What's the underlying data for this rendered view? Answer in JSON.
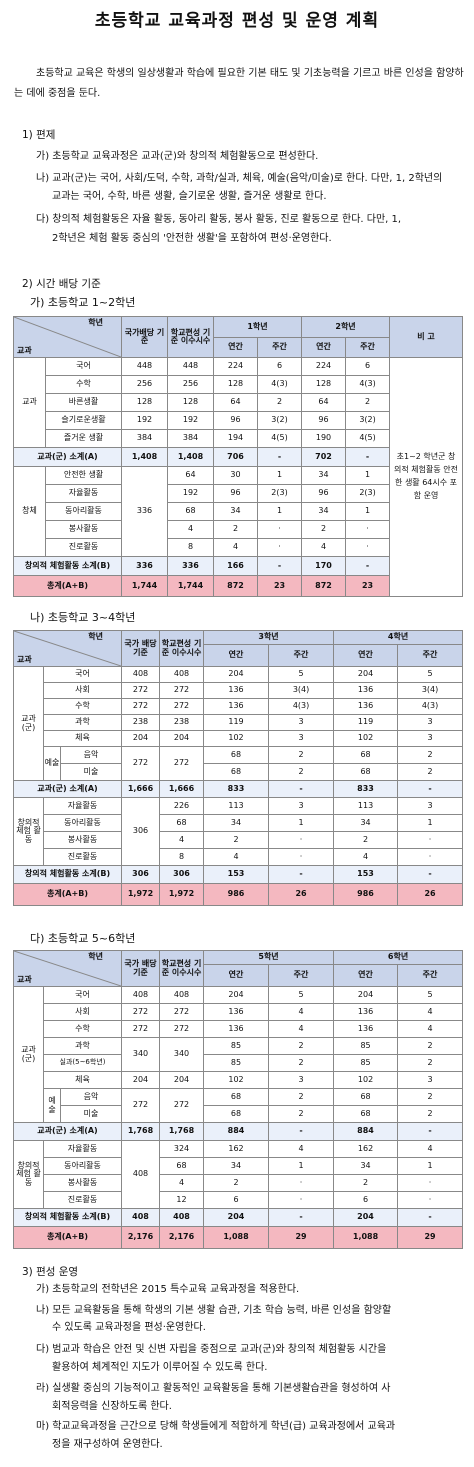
{
  "title": "초등학교 교육과정 편성 및 운영 계획",
  "intro": "초등학교 교육은 학생의 일상생활과 학습에 필요한 기본 태도 및 기초능력을 기르고 바른 인성을 함양하는 데에 중점을 둔다.",
  "s1": {
    "heading": "1) 편제",
    "ga": "가) 초등학교 교육과정은 교과(군)와 창의적 체험활동으로 편성한다.",
    "na1": "나) 교과(군)는 국어, 사회/도덕, 수학, 과학/실과, 체육, 예술(음악/미술)로 한다. 다만, 1, 2학년의",
    "na2": "교과는 국어, 수학, 바른 생활, 슬기로운 생활, 즐거운 생활로 한다.",
    "da1": "다) 창의적 체험활동은 자율 활동, 동아리 활동, 봉사 활동, 진로 활동으로 한다. 다만, 1,",
    "da2": "2학년은 체험 활동 중심의 '안전한 생활'을 포함하여 편성·운영한다."
  },
  "s2": {
    "heading": "2) 시간 배당 기준",
    "t1_title": "가) 초등학교 1~2학년",
    "t2_title": "나) 초등학교 3~4학년",
    "t3_title": "다) 초등학교 5~6학년"
  },
  "t1": {
    "h": {
      "gyogwa": "교과",
      "hangnyeon": "학년",
      "baedang": "국가배당 기준",
      "isu": "학교편성 기준 이수시수",
      "g1": "1학년",
      "g2": "2학년",
      "yeon": "연간",
      "ju": "주간",
      "bigo": "비 고"
    },
    "grp_gyogwa": "교과",
    "grp_chang": "창체",
    "rows": [
      [
        "국어",
        "448",
        "448",
        "224",
        "6",
        "224",
        "6"
      ],
      [
        "수학",
        "256",
        "256",
        "128",
        "4(3)",
        "128",
        "4(3)"
      ],
      [
        "바른생활",
        "128",
        "128",
        "64",
        "2",
        "64",
        "2"
      ],
      [
        "슬기로운생활",
        "192",
        "192",
        "96",
        "3(2)",
        "96",
        "3(2)"
      ],
      [
        "즐거운 생활",
        "384",
        "384",
        "194",
        "4(5)",
        "190",
        "4(5)"
      ]
    ],
    "sub1": [
      "교과(군) 소계(A)",
      "1,408",
      "1,408",
      "706",
      "-",
      "702",
      "-"
    ],
    "chang_base": "336",
    "crows": [
      [
        "안전한 생활",
        "64",
        "30",
        "1",
        "34",
        "1"
      ],
      [
        "자율활동",
        "192",
        "96",
        "2(3)",
        "96",
        "2(3)"
      ],
      [
        "동아리활동",
        "68",
        "34",
        "1",
        "34",
        "1"
      ],
      [
        "봉사활동",
        "4",
        "2",
        "·",
        "2",
        "·"
      ],
      [
        "진로활동",
        "8",
        "4",
        "·",
        "4",
        "·"
      ]
    ],
    "sub2": [
      "창의적 체험활동 소계(B)",
      "336",
      "336",
      "166",
      "-",
      "170",
      "-"
    ],
    "total": [
      "총계(A+B)",
      "1,744",
      "1,744",
      "872",
      "23",
      "872",
      "23"
    ],
    "note": "초1~2 학년군 창의적 체험활동 안전한 생활 64시수 포함 운영"
  },
  "t2": {
    "h": {
      "gyogwa": "교과",
      "hangnyeon": "학년",
      "baedang": "국가 배당 기준",
      "isu": "학교편성 기준 이수시수",
      "g3": "3학년",
      "g4": "4학년",
      "yeon": "연간",
      "ju": "주간"
    },
    "grp": "교과 (군)",
    "rows": [
      [
        "국어",
        "408",
        "408",
        "204",
        "5",
        "204",
        "5"
      ],
      [
        "사회",
        "272",
        "272",
        "136",
        "3(4)",
        "136",
        "3(4)"
      ],
      [
        "수학",
        "272",
        "272",
        "136",
        "4(3)",
        "136",
        "4(3)"
      ],
      [
        "과학",
        "238",
        "238",
        "119",
        "3",
        "119",
        "3"
      ],
      [
        "체육",
        "204",
        "204",
        "102",
        "3",
        "102",
        "3"
      ]
    ],
    "art": "예술",
    "art_base": "272",
    "art_isu": "272",
    "arows": [
      [
        "음악",
        "68",
        "2",
        "68",
        "2"
      ],
      [
        "미술",
        "68",
        "2",
        "68",
        "2"
      ]
    ],
    "sub1": [
      "교과(군) 소계(A)",
      "1,666",
      "1,666",
      "833",
      "-",
      "833",
      "-"
    ],
    "cgrp": "창의적 체험 활동",
    "cbase": "306",
    "crows": [
      [
        "자율활동",
        "226",
        "113",
        "3",
        "113",
        "3"
      ],
      [
        "동아리활동",
        "68",
        "34",
        "1",
        "34",
        "1"
      ],
      [
        "봉사활동",
        "4",
        "2",
        "·",
        "2",
        "·"
      ],
      [
        "진로활동",
        "8",
        "4",
        "·",
        "4",
        "·"
      ]
    ],
    "sub2": [
      "창의적 체험활동 소계(B)",
      "306",
      "306",
      "153",
      "-",
      "153",
      "-"
    ],
    "total": [
      "총계(A+B)",
      "1,972",
      "1,972",
      "986",
      "26",
      "986",
      "26"
    ]
  },
  "t3": {
    "h": {
      "gyogwa": "교과",
      "hangnyeon": "학년",
      "baedang": "국가 배당 기준",
      "isu": "학교편성 기준 이수시수",
      "g5": "5학년",
      "g6": "6학년",
      "yeon": "연간",
      "ju": "주간"
    },
    "grp": "교과 (군)",
    "rows1": [
      [
        "국어",
        "408",
        "408",
        "204",
        "5",
        "204",
        "5"
      ],
      [
        "사회",
        "272",
        "272",
        "136",
        "4",
        "136",
        "4"
      ],
      [
        "수학",
        "272",
        "272",
        "136",
        "4",
        "136",
        "4"
      ]
    ],
    "sci": [
      "과학",
      "85",
      "2",
      "85",
      "2"
    ],
    "silgwa": [
      "실과(5~6학년)",
      "85",
      "2",
      "85",
      "2"
    ],
    "sci_base": "340",
    "sci_isu": "340",
    "pe": [
      "체육",
      "204",
      "204",
      "102",
      "3",
      "102",
      "3"
    ],
    "art": "예 술",
    "art_base": "272",
    "art_isu": "272",
    "arows": [
      [
        "음악",
        "68",
        "2",
        "68",
        "2"
      ],
      [
        "미술",
        "68",
        "2",
        "68",
        "2"
      ]
    ],
    "sub1": [
      "교과(군) 소계(A)",
      "1,768",
      "1,768",
      "884",
      "-",
      "884",
      "-"
    ],
    "cgrp": "창의적 체험 활동",
    "cbase": "408",
    "crows": [
      [
        "자율활동",
        "324",
        "162",
        "4",
        "162",
        "4"
      ],
      [
        "동아리활동",
        "68",
        "34",
        "1",
        "34",
        "1"
      ],
      [
        "봉사활동",
        "4",
        "2",
        "·",
        "2",
        "·"
      ],
      [
        "진로활동",
        "12",
        "6",
        "·",
        "6",
        "·"
      ]
    ],
    "sub2": [
      "창의적 체험활동 소계(B)",
      "408",
      "408",
      "204",
      "-",
      "204",
      "-"
    ],
    "total": [
      "총계(A+B)",
      "2,176",
      "2,176",
      "1,088",
      "29",
      "1,088",
      "29"
    ]
  },
  "s3": {
    "heading": "3) 편성 운영",
    "ga": "가) 초등학교의 전학년은 2015 특수교육 교육과정을 적용한다.",
    "na1": "나) 모든 교육활동을 통해 학생의 기본 생활 습관, 기초 학습 능력, 바른 인성을 함양할",
    "na2": "수 있도록 교육과정을 편성·운영한다.",
    "da1": "다) 범교과 학습은 안전 및 신변 자립을 중점으로 교과(군)와 창의적 체험활동 시간을",
    "da2": "활용하여 체계적인 지도가 이루어질 수 있도록 한다.",
    "ra1": "라) 실생활 중심의 기능적이고 활동적인 교육활동을 통해 기본생활습관을 형성하여 사",
    "ra2": "회적응력을 신장하도록 한다.",
    "ma1": "마) 학교교육과정을 근간으로 당해 학생들에게 적합하게 학년(급) 교육과정에서 교육과",
    "ma2": "정을 재구성하여 운영한다."
  }
}
